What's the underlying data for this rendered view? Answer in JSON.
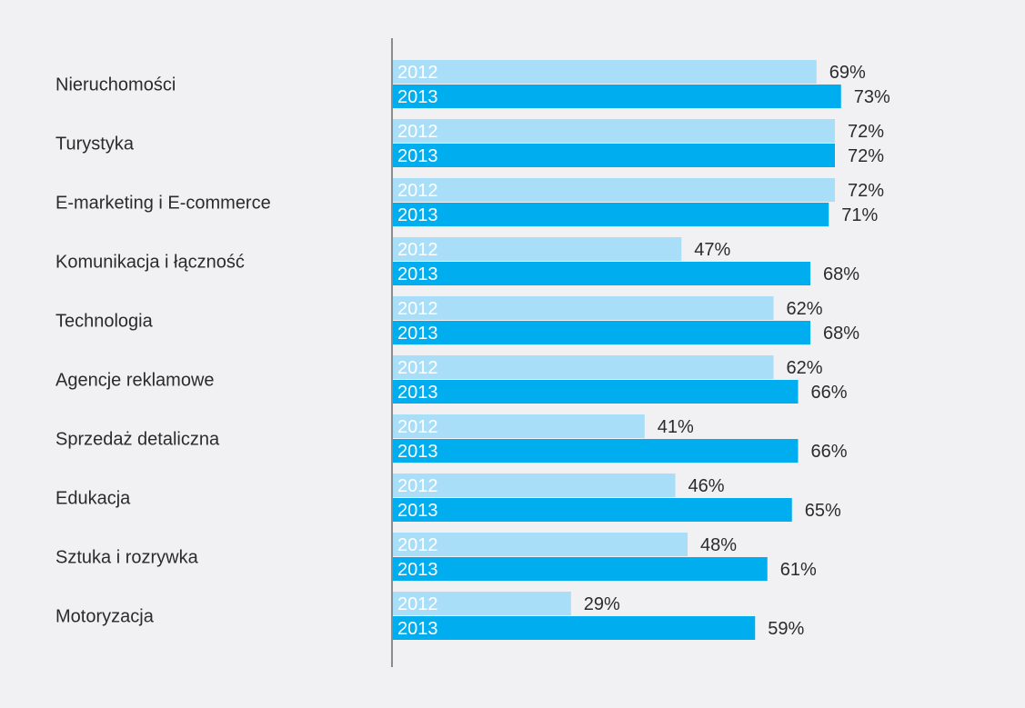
{
  "chart_data": {
    "type": "bar",
    "orientation": "horizontal",
    "title": "",
    "xlabel": "",
    "ylabel": "",
    "xlim": [
      0,
      100
    ],
    "grid": false,
    "legend": "none",
    "categories": [
      "Nieruchomości",
      "Turystyka",
      "E-marketing i E-commerce",
      "Komunikacja i łączność",
      "Technologia",
      "Agencje reklamowe",
      "Sprzedaż detaliczna",
      "Edukacja",
      "Sztuka i rozrywka",
      "Motoryzacja"
    ],
    "series": [
      {
        "name": "2012",
        "color": "#a8def8",
        "label_color": "#ffffff",
        "values": [
          69,
          72,
          72,
          47,
          62,
          62,
          41,
          46,
          48,
          29
        ],
        "data_labels": [
          "69%",
          "72%",
          "72%",
          "47%",
          "62%",
          "62%",
          "41%",
          "46%",
          "48%",
          "29%"
        ]
      },
      {
        "name": "2013",
        "color": "#00aeef",
        "label_color": "#ffffff",
        "values": [
          73,
          72,
          71,
          68,
          68,
          66,
          66,
          65,
          61,
          59
        ],
        "data_labels": [
          "73%",
          "72%",
          "71%",
          "68%",
          "68%",
          "66%",
          "66%",
          "65%",
          "61%",
          "59%"
        ]
      }
    ],
    "colors": {
      "background": "#f1f1f3",
      "axis": "#8c8c8c",
      "category_text": "#2b2b2b",
      "value_text": "#2b2b2b"
    }
  }
}
